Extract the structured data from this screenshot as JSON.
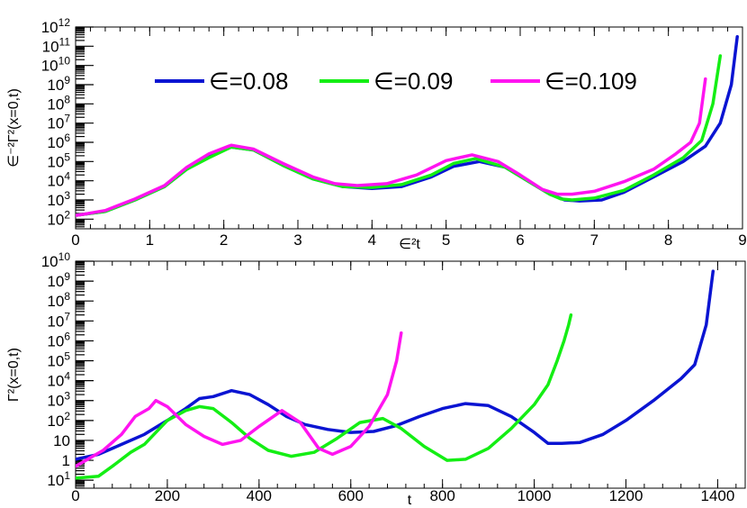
{
  "chart_data": [
    {
      "type": "line",
      "xlabel": "∈²t",
      "ylabel": "∈⁻²Γ²(x=0,t)",
      "xlim": [
        0,
        9
      ],
      "ylim_log10": [
        1.5,
        12
      ],
      "yscale": "log",
      "legend": "top, horizontal",
      "xticks": [
        "0",
        "1",
        "2",
        "3",
        "4",
        "5",
        "6",
        "7",
        "8",
        "9"
      ],
      "yticks": [
        {
          "exp": 2,
          "label": "10",
          "sup": "2"
        },
        {
          "exp": 3,
          "label": "10",
          "sup": "3"
        },
        {
          "exp": 4,
          "label": "10",
          "sup": "4"
        },
        {
          "exp": 5,
          "label": "10",
          "sup": "5"
        },
        {
          "exp": 6,
          "label": "10",
          "sup": "6"
        },
        {
          "exp": 7,
          "label": "10",
          "sup": "7"
        },
        {
          "exp": 8,
          "label": "10",
          "sup": "8"
        },
        {
          "exp": 9,
          "label": "10",
          "sup": "9"
        },
        {
          "exp": 10,
          "label": "10",
          "sup": "10"
        },
        {
          "exp": 11,
          "label": "10",
          "sup": "11"
        },
        {
          "exp": 12,
          "label": "10",
          "sup": "12"
        }
      ],
      "series": [
        {
          "name": "∈=0.08",
          "color": "#0a14d2",
          "x": [
            0,
            0.1,
            0.4,
            0.8,
            1.2,
            1.5,
            1.8,
            2.1,
            2.4,
            2.8,
            3.2,
            3.6,
            4.0,
            4.4,
            4.8,
            5.1,
            5.45,
            5.8,
            6.1,
            6.4,
            6.6,
            6.8,
            7.1,
            7.4,
            7.8,
            8.2,
            8.5,
            8.7,
            8.85,
            8.93
          ],
          "y": [
            2.2,
            2.25,
            2.4,
            3.0,
            3.7,
            4.6,
            5.3,
            5.75,
            5.6,
            4.8,
            4.1,
            3.7,
            3.6,
            3.7,
            4.2,
            4.75,
            5.0,
            4.7,
            4.0,
            3.3,
            3.0,
            2.95,
            3.0,
            3.4,
            4.2,
            5.0,
            5.8,
            7.0,
            9.0,
            11.5
          ]
        },
        {
          "name": "∈=0.09",
          "color": "#14ee14",
          "x": [
            0,
            0.1,
            0.4,
            0.8,
            1.2,
            1.5,
            1.8,
            2.1,
            2.4,
            2.8,
            3.2,
            3.6,
            4.0,
            4.4,
            4.8,
            5.1,
            5.4,
            5.8,
            6.1,
            6.4,
            6.55,
            6.7,
            7.0,
            7.4,
            7.8,
            8.2,
            8.45,
            8.6,
            8.66,
            8.7
          ],
          "y": [
            2.2,
            2.25,
            2.4,
            3.0,
            3.7,
            4.6,
            5.2,
            5.75,
            5.6,
            4.8,
            4.1,
            3.7,
            3.65,
            3.8,
            4.3,
            4.9,
            5.15,
            4.7,
            4.0,
            3.3,
            3.05,
            3.0,
            3.1,
            3.5,
            4.3,
            5.2,
            6.1,
            8.0,
            9.5,
            10.5
          ]
        },
        {
          "name": "∈=0.109",
          "color": "#ff14f0",
          "x": [
            0,
            0.1,
            0.4,
            0.8,
            1.2,
            1.5,
            1.8,
            2.1,
            2.4,
            2.8,
            3.2,
            3.5,
            3.8,
            4.2,
            4.6,
            5.0,
            5.35,
            5.7,
            6.0,
            6.3,
            6.5,
            6.7,
            7.0,
            7.4,
            7.8,
            8.1,
            8.3,
            8.42,
            8.5
          ],
          "y": [
            2.2,
            2.25,
            2.45,
            3.05,
            3.75,
            4.7,
            5.4,
            5.85,
            5.65,
            4.9,
            4.2,
            3.85,
            3.75,
            3.85,
            4.3,
            5.05,
            5.35,
            5.0,
            4.3,
            3.55,
            3.3,
            3.3,
            3.45,
            3.95,
            4.6,
            5.4,
            6.0,
            7.0,
            9.3
          ]
        }
      ]
    },
    {
      "type": "line",
      "xlabel": "t",
      "ylabel": "Γ²(x=0,t)",
      "xlim": [
        0,
        1460
      ],
      "ylim_log10": [
        -1.4,
        10
      ],
      "yscale": "log",
      "xticks": [
        "0",
        "200",
        "400",
        "600",
        "800",
        "1000",
        "1200",
        "1400"
      ],
      "yticks": [
        {
          "exp": -1,
          "label": "10",
          "sup": "1"
        },
        {
          "exp": 0,
          "label": "1",
          "sup": ""
        },
        {
          "exp": 1,
          "label": "10",
          "sup": ""
        },
        {
          "exp": 2,
          "label": "10",
          "sup": "2"
        },
        {
          "exp": 3,
          "label": "10",
          "sup": "3"
        },
        {
          "exp": 4,
          "label": "10",
          "sup": "4"
        },
        {
          "exp": 5,
          "label": "10",
          "sup": "5"
        },
        {
          "exp": 6,
          "label": "10",
          "sup": "6"
        },
        {
          "exp": 7,
          "label": "10",
          "sup": "7"
        },
        {
          "exp": 8,
          "label": "10",
          "sup": "8"
        },
        {
          "exp": 9,
          "label": "10",
          "sup": "9"
        },
        {
          "exp": 10,
          "label": "10",
          "sup": "10"
        }
      ],
      "series": [
        {
          "name": "∈=0.08",
          "color": "#0a14d2",
          "x": [
            0,
            50,
            100,
            150,
            200,
            240,
            270,
            300,
            340,
            380,
            420,
            460,
            500,
            550,
            600,
            650,
            700,
            750,
            800,
            850,
            900,
            950,
            1000,
            1030,
            1060,
            1100,
            1150,
            1200,
            1260,
            1320,
            1350,
            1375,
            1390
          ],
          "y": [
            0.05,
            0.3,
            0.8,
            1.3,
            2.0,
            2.6,
            3.1,
            3.2,
            3.5,
            3.3,
            2.8,
            2.2,
            1.8,
            1.55,
            1.4,
            1.45,
            1.75,
            2.2,
            2.6,
            2.85,
            2.75,
            2.2,
            1.4,
            0.85,
            0.85,
            0.9,
            1.3,
            2.0,
            3.0,
            4.1,
            4.8,
            6.8,
            9.5
          ]
        },
        {
          "name": "∈=0.09",
          "color": "#14ee14",
          "x": [
            0,
            50,
            80,
            120,
            150,
            200,
            240,
            270,
            300,
            340,
            380,
            420,
            470,
            520,
            570,
            620,
            670,
            710,
            760,
            810,
            850,
            900,
            950,
            1000,
            1030,
            1050,
            1065,
            1075,
            1080
          ],
          "y": [
            -0.9,
            -0.8,
            -0.3,
            0.4,
            0.8,
            2.0,
            2.5,
            2.7,
            2.6,
            1.9,
            1.1,
            0.5,
            0.2,
            0.4,
            1.1,
            1.9,
            2.1,
            1.6,
            0.7,
            0.0,
            0.05,
            0.6,
            1.6,
            2.8,
            3.8,
            5.0,
            6.0,
            6.8,
            7.3
          ]
        },
        {
          "name": "∈=0.109",
          "color": "#ff14f0",
          "x": [
            0,
            30,
            60,
            100,
            130,
            160,
            175,
            200,
            240,
            280,
            320,
            360,
            400,
            450,
            490,
            530,
            560,
            600,
            640,
            660,
            680,
            700,
            710
          ],
          "y": [
            -0.3,
            0.1,
            0.5,
            1.3,
            2.2,
            2.6,
            3.0,
            2.7,
            1.8,
            1.2,
            0.8,
            1.0,
            1.7,
            2.5,
            1.9,
            0.6,
            0.3,
            0.7,
            1.7,
            2.5,
            3.3,
            5.0,
            6.4
          ]
        }
      ]
    }
  ]
}
